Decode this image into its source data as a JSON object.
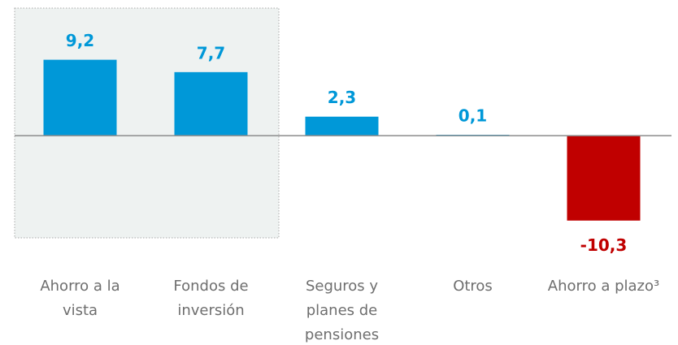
{
  "chart_data": {
    "type": "bar",
    "categories": [
      [
        "Ahorro a la",
        "vista"
      ],
      [
        "Fondos de",
        "inversión"
      ],
      [
        "Seguros y",
        "planes de",
        "pensiones"
      ],
      [
        "Otros"
      ],
      [
        "Ahorro a plazo³"
      ]
    ],
    "values": [
      9.2,
      7.7,
      2.3,
      0.1,
      -10.3
    ],
    "value_labels": [
      "9,2",
      "7,7",
      "2,3",
      "0,1",
      "-10,3"
    ],
    "colors": [
      "#0098d8",
      "#0098d8",
      "#0098d8",
      "#0098d8",
      "#c00000"
    ],
    "ylim": [
      -12,
      13
    ]
  }
}
